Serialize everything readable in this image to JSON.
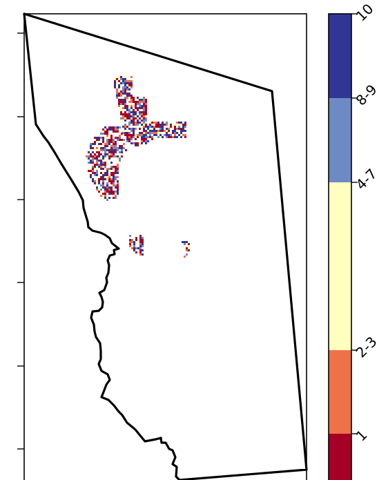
{
  "map": {
    "features": [
      {
        "name": "boundary-polygon",
        "kind": "county outline"
      },
      {
        "name": "data-cluster-north",
        "kind": "classified pixels"
      },
      {
        "name": "data-cluster-west",
        "kind": "classified pixels"
      },
      {
        "name": "data-cluster-middle",
        "kind": "classified pixels"
      },
      {
        "name": "data-cluster-east",
        "kind": "classified pixels"
      }
    ]
  },
  "colorbar": {
    "classes": [
      {
        "label": "1",
        "color": "#a50026"
      },
      {
        "label": "2-3",
        "color": "#ec7347"
      },
      {
        "label": "4-7",
        "color": "#ffffbf"
      },
      {
        "label": "8-9",
        "color": "#6e8ac4"
      },
      {
        "label": "10",
        "color": "#313695"
      }
    ]
  }
}
